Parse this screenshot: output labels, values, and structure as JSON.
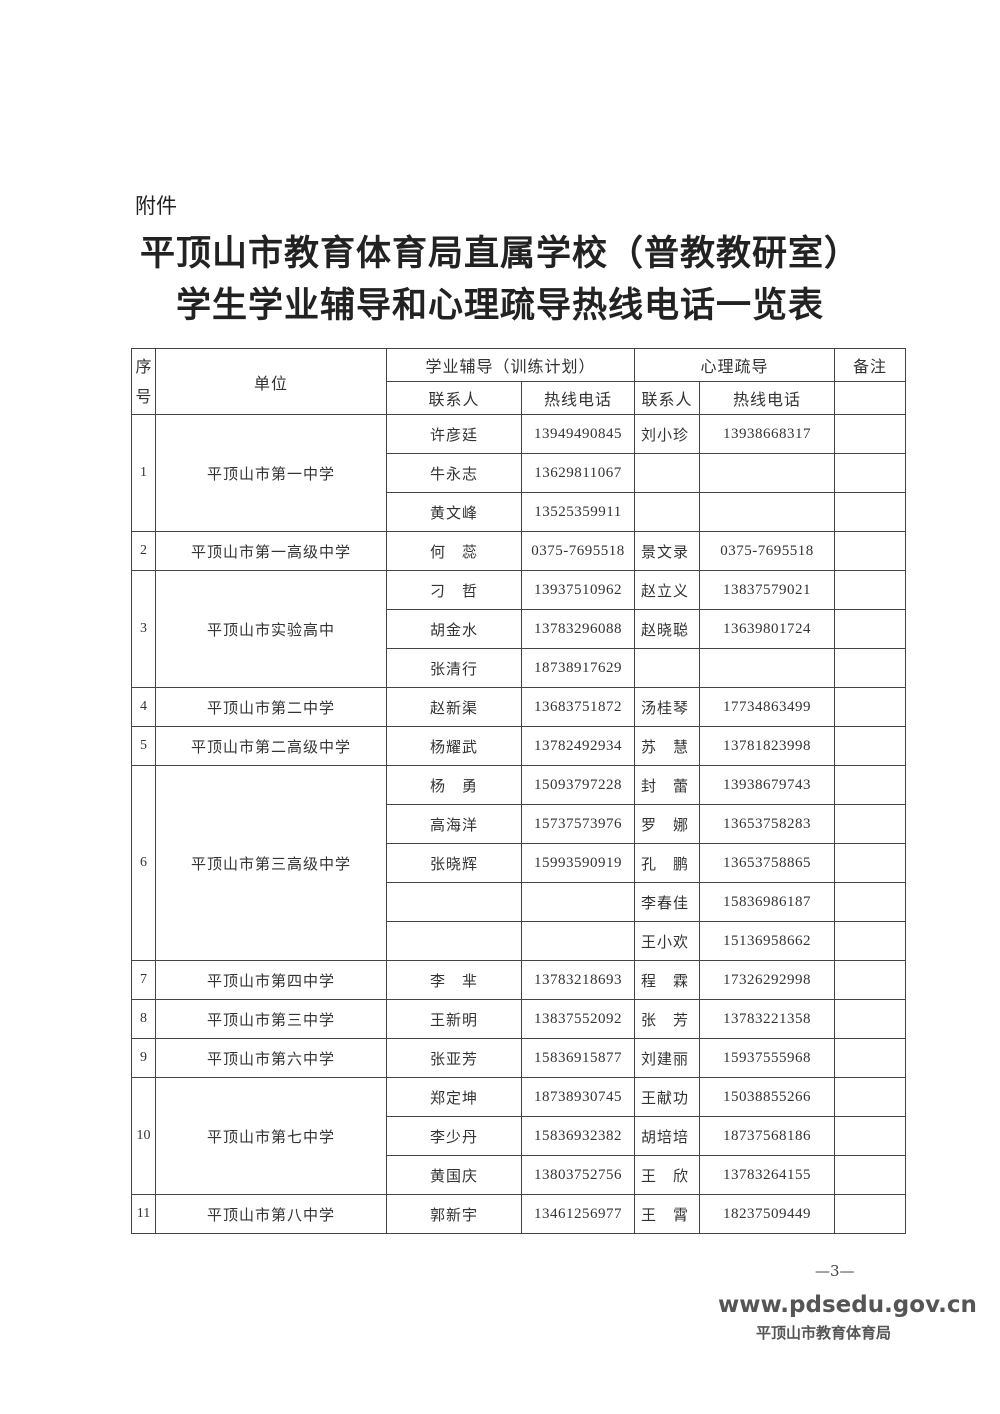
{
  "attachment_label": "附件",
  "title_line1": "平顶山市教育体育局直属学校（普教教研室）",
  "title_line2": "学生学业辅导和心理疏导热线电话一览表",
  "headers": {
    "seq": "序号",
    "unit": "单位",
    "academic": "学业辅导（训练计划）",
    "psych": "心理疏导",
    "note": "备注",
    "contact": "联系人",
    "hotline": "热线电话"
  },
  "groups": [
    {
      "seq": "1",
      "unit": "平顶山市第一中学",
      "rows": [
        [
          "许彦廷",
          "13949490845",
          "刘小珍",
          "13938668317"
        ],
        [
          "牛永志",
          "13629811067",
          "",
          ""
        ],
        [
          "黄文峰",
          "13525359911",
          "",
          ""
        ]
      ]
    },
    {
      "seq": "2",
      "unit": "平顶山市第一高级中学",
      "rows": [
        [
          "何　蕊",
          "0375-7695518",
          "景文录",
          "0375-7695518"
        ]
      ]
    },
    {
      "seq": "3",
      "unit": "平顶山市实验高中",
      "rows": [
        [
          "刁　哲",
          "13937510962",
          "赵立义",
          "13837579021"
        ],
        [
          "胡金水",
          "13783296088",
          "赵晓聪",
          "13639801724"
        ],
        [
          "张清行",
          "18738917629",
          "",
          ""
        ]
      ]
    },
    {
      "seq": "4",
      "unit": "平顶山市第二中学",
      "rows": [
        [
          "赵新渠",
          "13683751872",
          "汤桂琴",
          "17734863499"
        ]
      ]
    },
    {
      "seq": "5",
      "unit": "平顶山市第二高级中学",
      "rows": [
        [
          "杨耀武",
          "13782492934",
          "苏　慧",
          "13781823998"
        ]
      ]
    },
    {
      "seq": "6",
      "unit": "平顶山市第三高级中学",
      "rows": [
        [
          "杨　勇",
          "15093797228",
          "封　蕾",
          "13938679743"
        ],
        [
          "高海洋",
          "15737573976",
          "罗　娜",
          "13653758283"
        ],
        [
          "张晓辉",
          "15993590919",
          "孔　鹏",
          "13653758865"
        ],
        [
          "",
          "",
          "李春佳",
          "15836986187"
        ],
        [
          "",
          "",
          "王小欢",
          "15136958662"
        ]
      ]
    },
    {
      "seq": "7",
      "unit": "平顶山市第四中学",
      "rows": [
        [
          "李　芈",
          "13783218693",
          "程　霖",
          "17326292998"
        ]
      ]
    },
    {
      "seq": "8",
      "unit": "平顶山市第三中学",
      "rows": [
        [
          "王新明",
          "13837552092",
          "张　芳",
          "13783221358"
        ]
      ]
    },
    {
      "seq": "9",
      "unit": "平顶山市第六中学",
      "rows": [
        [
          "张亚芳",
          "15836915877",
          "刘建丽",
          "15937555968"
        ]
      ]
    },
    {
      "seq": "10",
      "unit": "平顶山市第七中学",
      "rows": [
        [
          "郑定坤",
          "18738930745",
          "王献功",
          "15038855266"
        ],
        [
          "李少丹",
          "15836932382",
          "胡培培",
          "18737568186"
        ],
        [
          "黄国庆",
          "13803752756",
          "王　欣",
          "13783264155"
        ]
      ]
    },
    {
      "seq": "11",
      "unit": "平顶山市第八中学",
      "rows": [
        [
          "郭新宇",
          "13461256977",
          "王　霄",
          "18237509449"
        ]
      ]
    }
  ],
  "page_number": "—3—",
  "watermark_url": "www.pdsedu.gov.cn",
  "watermark_org": "平顶山市教育体育局"
}
